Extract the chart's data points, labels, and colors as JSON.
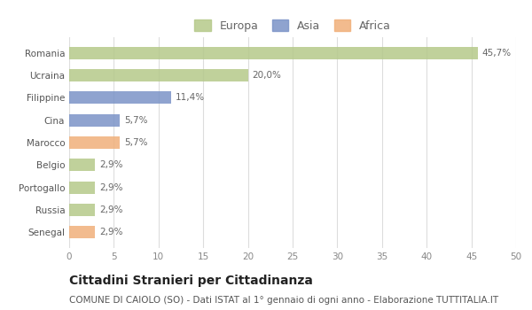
{
  "categories": [
    "Romania",
    "Ucraina",
    "Filippine",
    "Cina",
    "Marocco",
    "Belgio",
    "Portogallo",
    "Russia",
    "Senegal"
  ],
  "values": [
    45.7,
    20.0,
    11.4,
    5.7,
    5.7,
    2.9,
    2.9,
    2.9,
    2.9
  ],
  "labels": [
    "45,7%",
    "20,0%",
    "11,4%",
    "5,7%",
    "5,7%",
    "2,9%",
    "2,9%",
    "2,9%",
    "2,9%"
  ],
  "colors": [
    "#b5c98a",
    "#b5c98a",
    "#7b93c7",
    "#7b93c7",
    "#f0b07a",
    "#b5c98a",
    "#b5c98a",
    "#b5c98a",
    "#f0b07a"
  ],
  "legend_labels": [
    "Europa",
    "Asia",
    "Africa"
  ],
  "legend_colors": [
    "#b5c98a",
    "#7b93c7",
    "#f0b07a"
  ],
  "xlim": [
    0,
    50
  ],
  "xticks": [
    0,
    5,
    10,
    15,
    20,
    25,
    30,
    35,
    40,
    45,
    50
  ],
  "title": "Cittadini Stranieri per Cittadinanza",
  "subtitle": "COMUNE DI CAIOLO (SO) - Dati ISTAT al 1° gennaio di ogni anno - Elaborazione TUTTITALIA.IT",
  "background_color": "#ffffff",
  "grid_color": "#dddddd",
  "bar_height": 0.55,
  "label_fontsize": 7.5,
  "title_fontsize": 10,
  "subtitle_fontsize": 7.5,
  "tick_fontsize": 7.5,
  "ytick_fontsize": 7.5
}
